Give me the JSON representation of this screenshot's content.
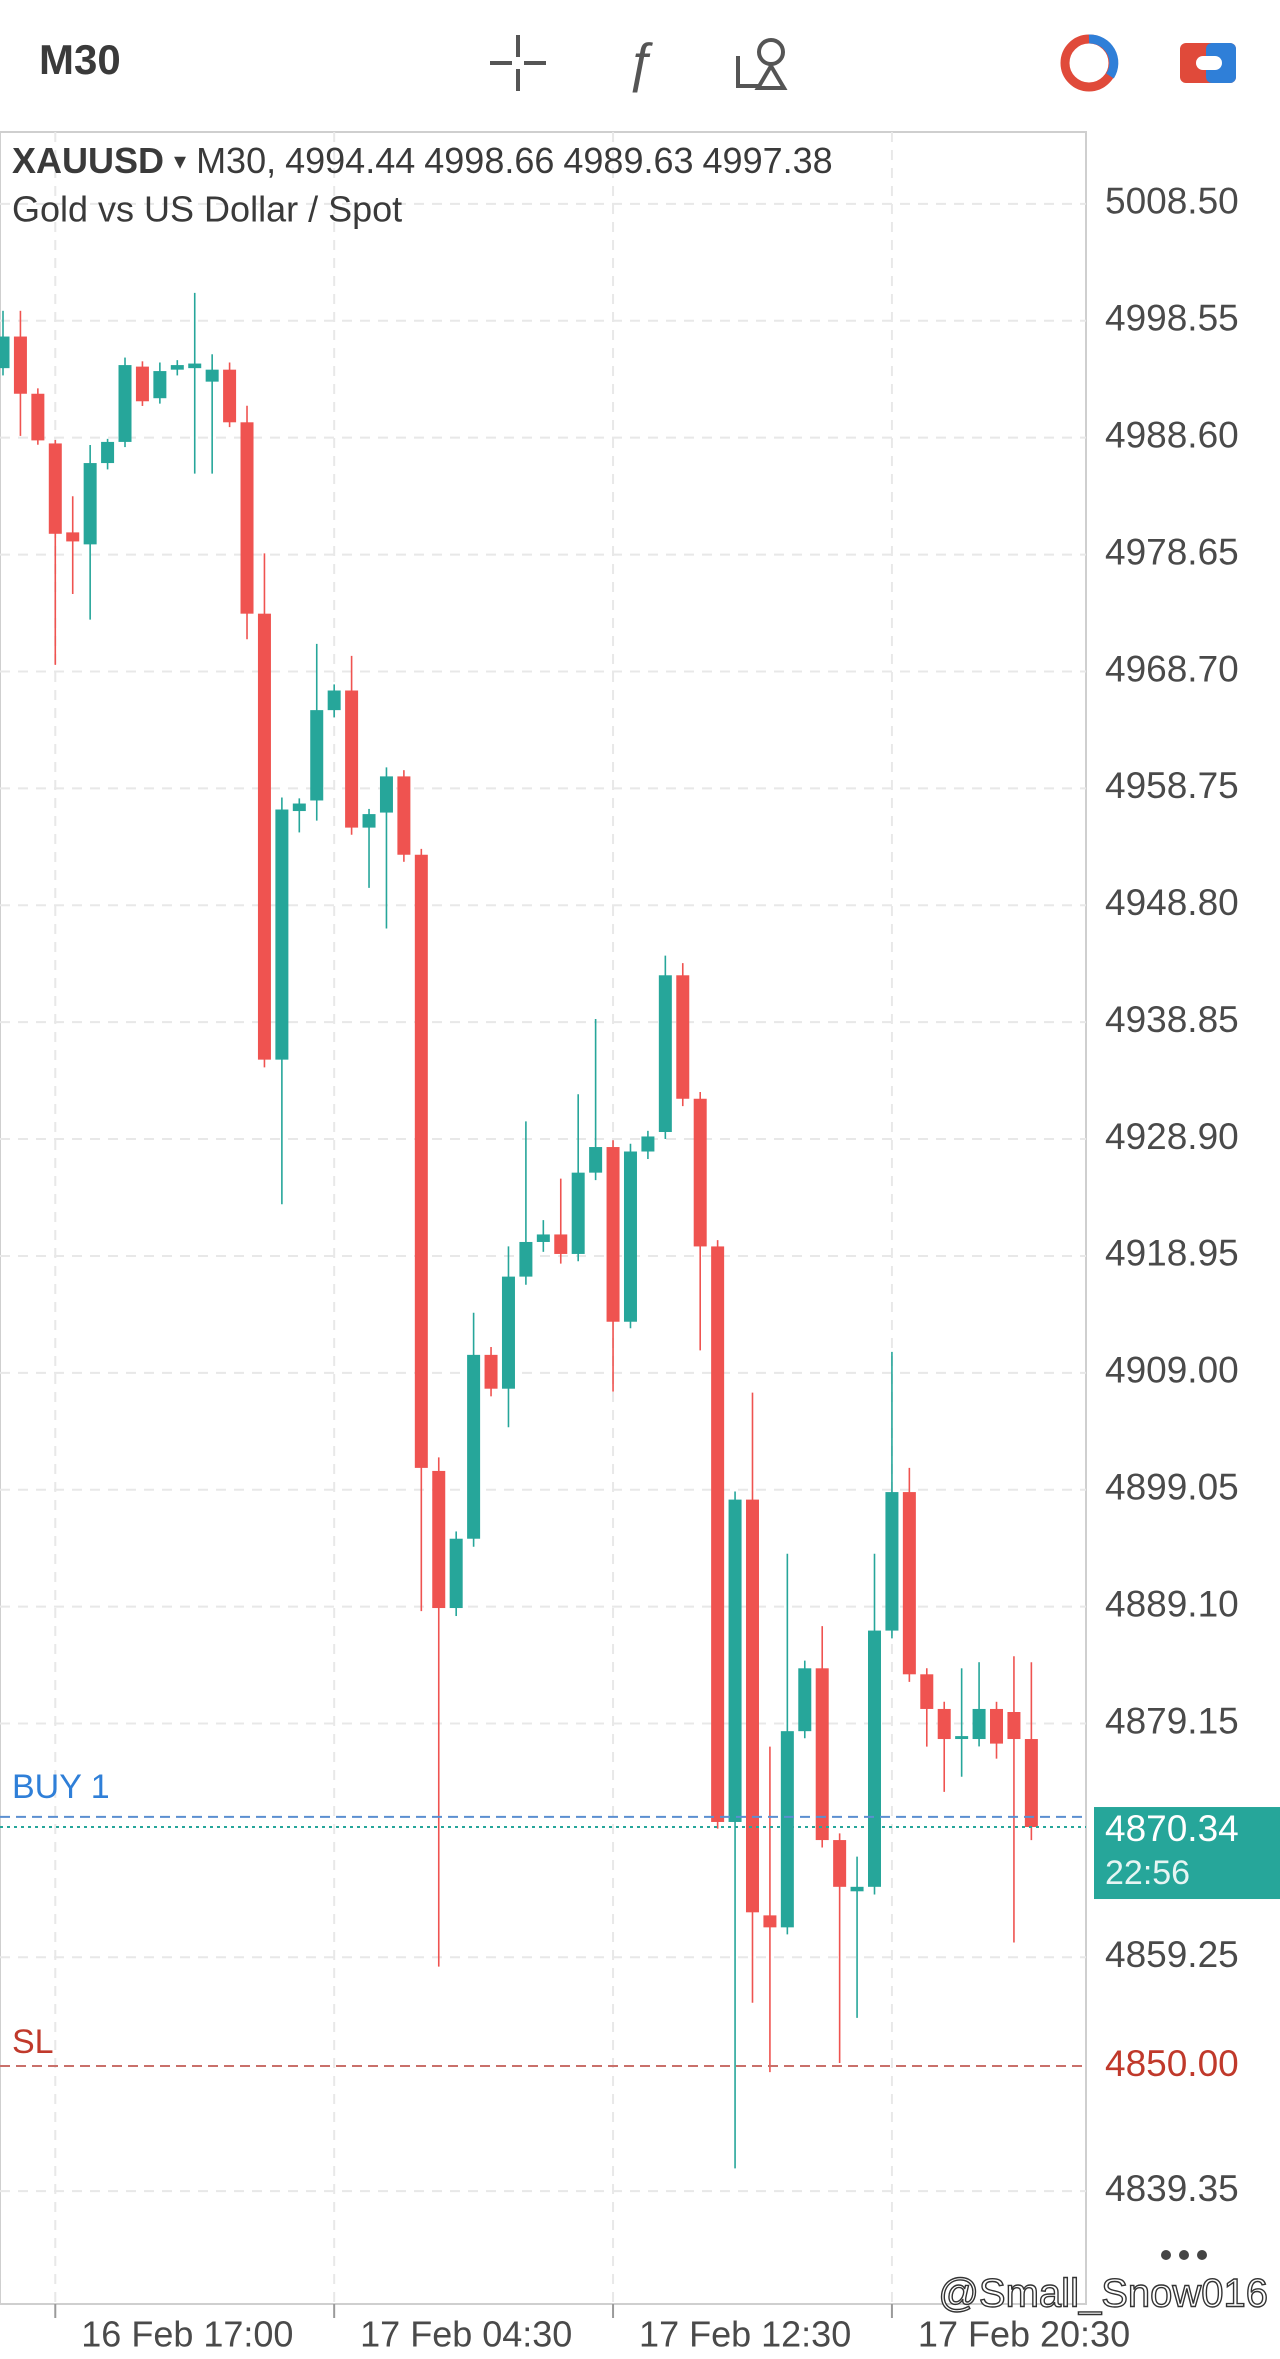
{
  "chart_data": {
    "type": "candlestick",
    "toolbar_timeframe": "M30",
    "symbol": "XAUUSD",
    "timeframe": "M30",
    "ohlc": [
      4994.44,
      4998.66,
      4989.63,
      4997.38
    ],
    "subtitle": "Gold vs US Dollar / Spot",
    "up_color": "#26a69a",
    "down_color": "#ef5350",
    "open": [
      4994.52,
      4997.21,
      4992.34,
      4988.11,
      4980.54,
      4979.52,
      4986.44,
      4988.24,
      4994.65,
      4991.96,
      4994.39,
      4994.52,
      4993.37,
      4994.39,
      4989.91,
      4973.62,
      4935.66,
      4956.82,
      4957.72,
      4965.41,
      4967.08,
      4955.41,
      4956.69,
      4959.77,
      4953.1,
      4900.65,
      4888.98,
      4894.88,
      4910.53,
      4907.65,
      4917.19,
      4920.14,
      4920.78,
      4919.12,
      4926.04,
      4928.22,
      4913.35,
      4927.84,
      4929.5,
      4942.84,
      4932.33,
      4919.76,
      4870.77,
      4898.21,
      4862.82,
      4861.8,
      4878.5,
      4883.85,
      4869.23,
      4864.87,
      4865.25,
      4887.06,
      4898.85,
      4883.34,
      4880.39,
      4877.83,
      4877.83,
      4880.39,
      4880.13,
      4877.83
    ],
    "high": [
      4999.4,
      4999.4,
      4992.8,
      4988.4,
      4983.62,
      4987.98,
      4988.5,
      4995.42,
      4995.1,
      4995.0,
      4995.2,
      5000.93,
      4995.7,
      4995.0,
      4991.32,
      4978.75,
      4957.97,
      4957.9,
      4971.05,
      4967.6,
      4970.03,
      4957.0,
      4960.54,
      4960.3,
      4953.6,
      4901.8,
      4895.5,
      4914.11,
      4911.2,
      4919.76,
      4930.4,
      4922.0,
      4925.53,
      4932.71,
      4939.12,
      4928.8,
      4928.5,
      4929.6,
      4944.51,
      4943.87,
      4932.9,
      4920.3,
      4898.9,
      4907.32,
      4877.18,
      4893.6,
      4884.5,
      4887.44,
      4869.8,
      4867.82,
      4893.6,
      4910.78,
      4900.91,
      4883.85,
      4881.0,
      4883.85,
      4884.37,
      4881.0,
      4884.88,
      4884.37
    ],
    "low": [
      4993.9,
      4988.75,
      4988.0,
      4969.26,
      4975.29,
      4973.11,
      4985.9,
      4987.8,
      4991.3,
      4991.5,
      4993.9,
      4985.54,
      4985.54,
      4989.5,
      4971.44,
      4935.0,
      4923.35,
      4955.0,
      4956.0,
      4964.8,
      4954.8,
      4950.28,
      4946.82,
      4952.5,
      4888.72,
      4858.46,
      4888.3,
      4894.2,
      4907.0,
      4904.37,
      4916.5,
      4919.3,
      4918.3,
      4918.5,
      4925.4,
      4907.4,
      4912.8,
      4927.2,
      4928.9,
      4931.7,
      4910.91,
      4870.2,
      4841.28,
      4855.38,
      4849.48,
      4861.2,
      4877.9,
      4868.6,
      4850.25,
      4854.1,
      4864.6,
      4886.4,
      4882.7,
      4877.18,
      4873.33,
      4874.62,
      4877.2,
      4876.16,
      4860.51,
      4869.23
    ],
    "close": [
      4997.21,
      4992.34,
      4988.37,
      4980.42,
      4979.77,
      4986.44,
      4988.24,
      4994.78,
      4991.7,
      4994.27,
      4994.78,
      4994.91,
      4994.39,
      4989.91,
      4973.62,
      4935.66,
      4956.95,
      4957.46,
      4965.41,
      4967.08,
      4955.41,
      4956.56,
      4959.77,
      4953.1,
      4900.91,
      4888.98,
      4894.88,
      4910.53,
      4907.65,
      4917.19,
      4920.14,
      4920.78,
      4919.12,
      4926.04,
      4928.22,
      4913.35,
      4927.84,
      4929.12,
      4942.84,
      4932.33,
      4919.76,
      4870.77,
      4898.21,
      4863.08,
      4861.8,
      4878.5,
      4883.85,
      4869.23,
      4865.25,
      4865.25,
      4887.06,
      4898.85,
      4883.34,
      4880.39,
      4877.83,
      4878.08,
      4880.39,
      4877.44,
      4877.83,
      4870.34
    ],
    "ylim": [
      4829.74,
      5014.62
    ],
    "yticks": [
      {
        "value": 5008.5,
        "label": "5008.50"
      },
      4998.55,
      {
        "value": 4988.6,
        "label": "4988.60"
      },
      4978.65,
      {
        "value": 4968.7,
        "label": "4968.70"
      },
      4958.75,
      {
        "value": 4948.8,
        "label": "4948.80"
      },
      4938.85,
      {
        "value": 4928.9,
        "label": "4928.90"
      },
      4918.95,
      {
        "value": 4909,
        "label": "4909.00"
      },
      4899.05,
      {
        "value": 4889.1,
        "label": "4889.10"
      },
      4879.15,
      4859.25,
      4839.35
    ],
    "xticks": [
      {
        "value": 3,
        "label": "16 Feb 17:00"
      },
      {
        "value": 19,
        "label": "17 Feb 04:30"
      },
      {
        "value": 35,
        "label": "17 Feb 12:30"
      },
      {
        "value": 51,
        "label": "17 Feb 20:30"
      }
    ],
    "grid": true,
    "current_price": 4870.34,
    "countdown": "22:56",
    "buy_label": "BUY 1",
    "buy_price": 4871.2,
    "sl_label": "SL",
    "sl": {
      "value": 4850,
      "label": "4850.00"
    },
    "watermark": "@Small_Snow016"
  }
}
